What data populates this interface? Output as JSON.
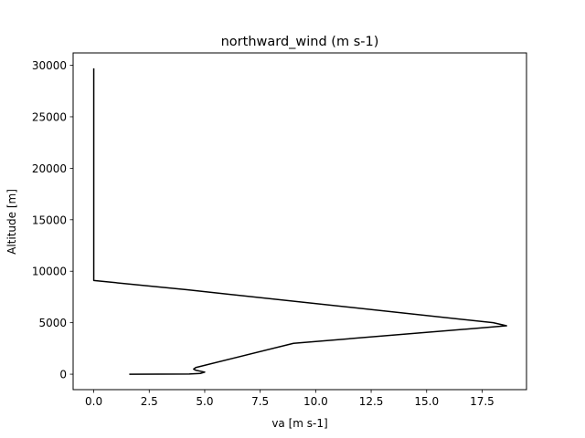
{
  "chart_data": {
    "type": "line",
    "title": "northward_wind (m s-1)",
    "xlabel": "va [m s-1]",
    "ylabel": "Altitude [m]",
    "xlim": [
      -0.93,
      19.5
    ],
    "ylim": [
      -1500,
      31200
    ],
    "x_ticks": [
      0.0,
      2.5,
      5.0,
      7.5,
      10.0,
      12.5,
      15.0,
      17.5
    ],
    "x_tick_labels": [
      "0.0",
      "2.5",
      "5.0",
      "7.5",
      "10.0",
      "12.5",
      "15.0",
      "17.5"
    ],
    "y_ticks": [
      0,
      5000,
      10000,
      15000,
      20000,
      25000,
      30000
    ],
    "y_tick_labels": [
      "0",
      "5000",
      "10000",
      "15000",
      "20000",
      "25000",
      "30000"
    ],
    "grid": false,
    "legend": "none",
    "series": [
      {
        "color": "#000000",
        "points": [
          [
            1.6,
            0
          ],
          [
            4.3,
            20
          ],
          [
            4.8,
            70
          ],
          [
            5.0,
            200
          ],
          [
            4.6,
            380
          ],
          [
            4.5,
            500
          ],
          [
            4.6,
            650
          ],
          [
            9.0,
            3000
          ],
          [
            18.6,
            4700
          ],
          [
            18.0,
            5000
          ],
          [
            4.2,
            8200
          ],
          [
            0.0,
            9100
          ],
          [
            0.0,
            10300
          ],
          [
            0.0,
            29700
          ]
        ]
      }
    ]
  }
}
